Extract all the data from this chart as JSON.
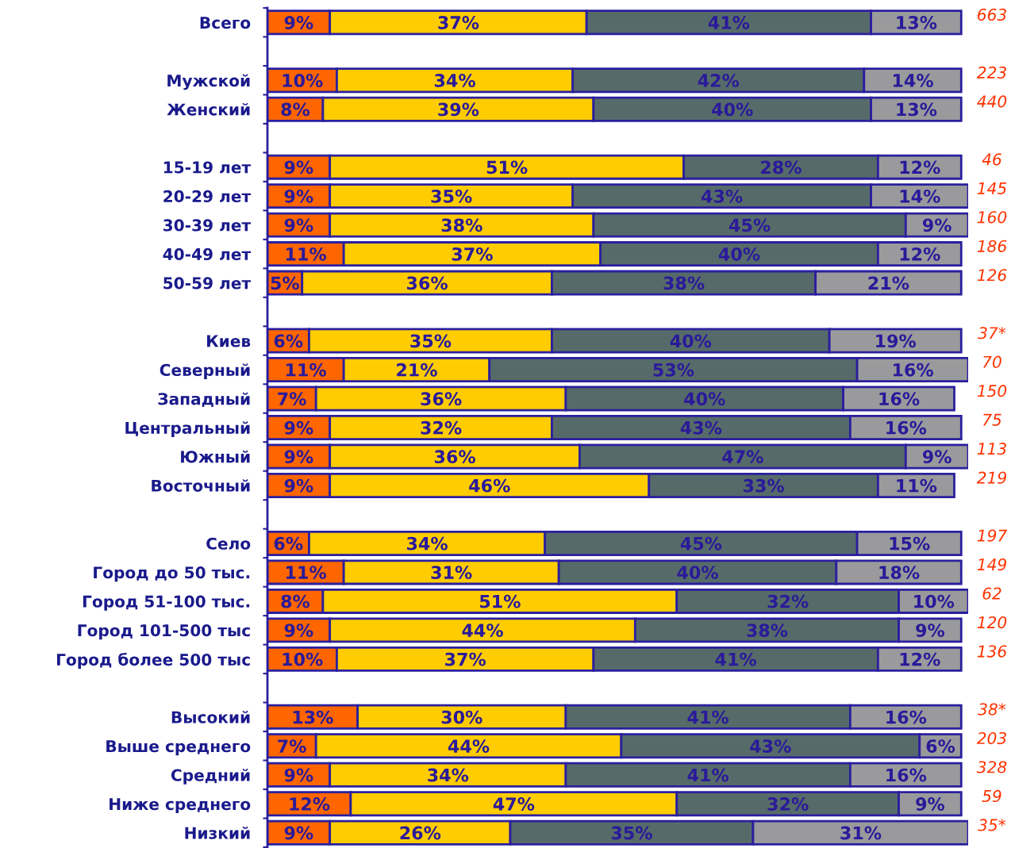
{
  "chart_data": {
    "type": "bar",
    "orientation": "horizontal",
    "stacked": true,
    "tick_labels": "y",
    "categories": [
      "Всего",
      null,
      "Мужской",
      "Женский",
      null,
      "15-19 лет",
      "20-29 лет",
      "30-39 лет",
      "40-49 лет",
      "50-59 лет",
      null,
      "Киев",
      "Северный",
      "Западный",
      "Центральный",
      "Южный",
      "Восточный",
      null,
      "Село",
      "Город до 50 тыс.",
      "Город 51-100 тыс.",
      "Город 101-500 тыс",
      "Город более 500 тыс",
      null,
      "Высокий",
      "Выше среднего",
      "Средний",
      "Ниже среднего",
      "Низкий"
    ],
    "y2_categories": [
      "663",
      null,
      "223",
      "440",
      null,
      "46",
      "145",
      "160",
      "186",
      "126",
      null,
      "37*",
      "70",
      "150",
      "75",
      "113",
      "219",
      null,
      "197",
      "149",
      "62",
      "120",
      "136",
      null,
      "38*",
      "203",
      "328",
      "59",
      "35*"
    ],
    "series": [
      {
        "color": "#ff6600",
        "values": [
          9,
          null,
          10,
          8,
          null,
          9,
          9,
          9,
          11,
          5,
          null,
          6,
          11,
          7,
          9,
          9,
          9,
          null,
          6,
          11,
          8,
          9,
          10,
          null,
          13,
          7,
          9,
          12,
          9
        ],
        "value_labels": [
          "9%",
          null,
          "10%",
          "8%",
          null,
          "9%",
          "9%",
          "9%",
          "11%",
          "5%",
          null,
          "6%",
          "11%",
          "7%",
          "9%",
          "9%",
          "9%",
          null,
          "6%",
          "11%",
          "8%",
          "9%",
          "10%",
          null,
          "13%",
          "7%",
          "9%",
          "12%",
          "9%"
        ]
      },
      {
        "color": "#ffcc00",
        "values": [
          37,
          null,
          34,
          39,
          null,
          51,
          35,
          38,
          37,
          36,
          null,
          35,
          21,
          36,
          32,
          36,
          46,
          null,
          34,
          31,
          51,
          44,
          37,
          null,
          30,
          44,
          34,
          47,
          26
        ],
        "value_labels": [
          "37%",
          null,
          "34%",
          "39%",
          null,
          "51%",
          "35%",
          "38%",
          "37%",
          "36%",
          null,
          "35%",
          "21%",
          "36%",
          "32%",
          "36%",
          "46%",
          null,
          "34%",
          "31%",
          "51%",
          "44%",
          "37%",
          null,
          "30%",
          "44%",
          "34%",
          "47%",
          "26%"
        ]
      },
      {
        "color": "#566b69",
        "values": [
          41,
          null,
          42,
          40,
          null,
          28,
          43,
          45,
          40,
          38,
          null,
          40,
          53,
          40,
          43,
          47,
          33,
          null,
          45,
          40,
          32,
          38,
          41,
          null,
          41,
          43,
          41,
          32,
          35
        ],
        "value_labels": [
          "41%",
          null,
          "42%",
          "40%",
          null,
          "28%",
          "43%",
          "45%",
          "40%",
          "38%",
          null,
          "40%",
          "53%",
          "40%",
          "43%",
          "47%",
          "33%",
          null,
          "45%",
          "40%",
          "32%",
          "38%",
          "41%",
          null,
          "41%",
          "43%",
          "41%",
          "32%",
          "35%"
        ]
      },
      {
        "color": "#9a9a9c",
        "values": [
          13,
          null,
          14,
          13,
          null,
          12,
          14,
          9,
          12,
          21,
          null,
          19,
          16,
          16,
          16,
          9,
          11,
          null,
          15,
          18,
          10,
          9,
          12,
          null,
          16,
          6,
          16,
          9,
          31
        ],
        "value_labels": [
          "13%",
          null,
          "14%",
          "13%",
          null,
          "12%",
          "14%",
          "9%",
          "12%",
          "21%",
          null,
          "19%",
          "16%",
          "16%",
          "16%",
          "9%",
          "11%",
          null,
          "15%",
          "18%",
          "10%",
          "9%",
          "12%",
          null,
          "16%",
          "6%",
          "16%",
          "9%",
          "31%"
        ]
      }
    ]
  }
}
